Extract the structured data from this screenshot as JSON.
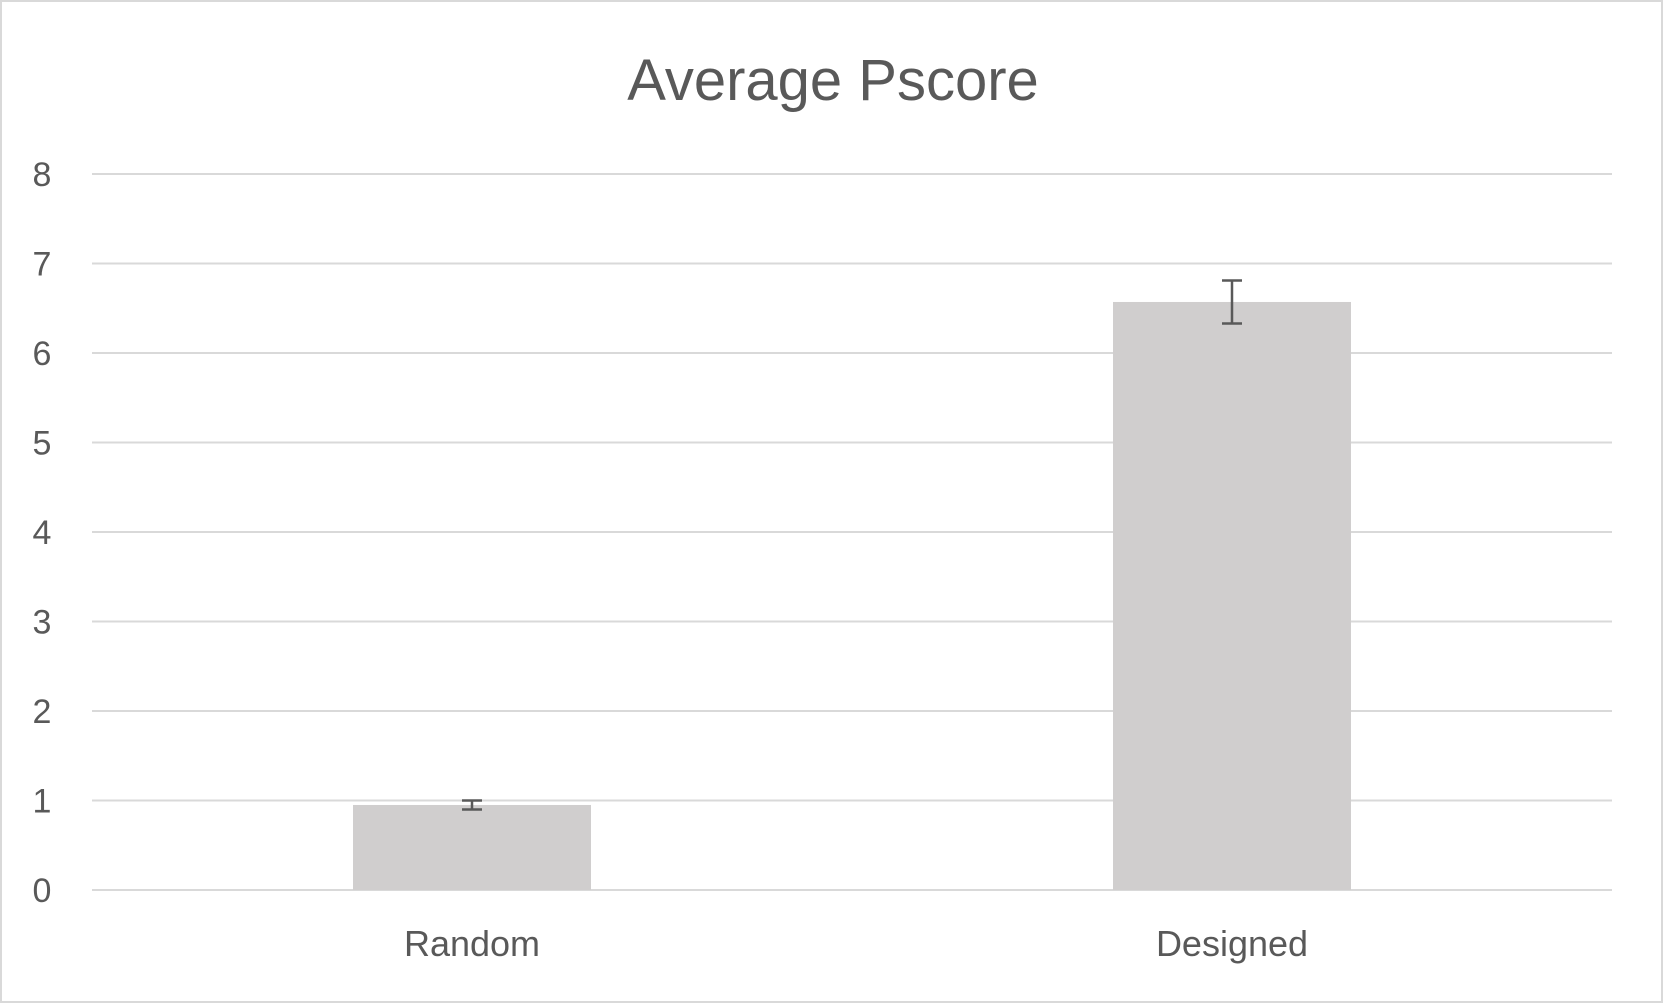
{
  "chart_data": {
    "type": "bar",
    "title": "Average Pscore",
    "xlabel": "",
    "ylabel": "",
    "categories": [
      "Random",
      "Designed"
    ],
    "values": [
      0.95,
      6.57
    ],
    "error": [
      0.05,
      0.24
    ],
    "ylim": [
      0,
      8
    ],
    "yticks": [
      "0",
      "1",
      "2",
      "3",
      "4",
      "5",
      "6",
      "7",
      "8"
    ],
    "grid": true,
    "legend": "none",
    "colors": {
      "bar": "#d0cece",
      "gridline": "#d9d9d9",
      "error_bar": "#595959",
      "text": "#595959"
    }
  }
}
